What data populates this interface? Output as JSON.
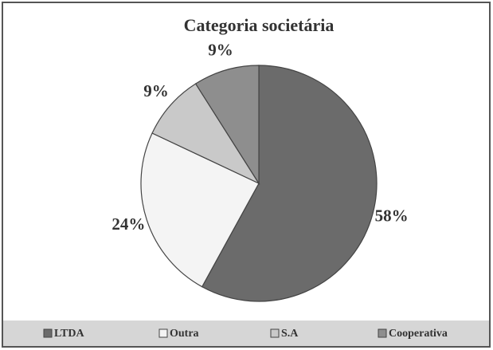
{
  "chart_data": {
    "type": "pie",
    "title": "Categoria societária",
    "categories": [
      "LTDA",
      "Outra",
      "S.A",
      "Cooperativa"
    ],
    "values": [
      58,
      24,
      9,
      9
    ],
    "value_labels": [
      "58%",
      "24%",
      "9%",
      "9%"
    ],
    "colors": [
      "#6b6b6b",
      "#f4f4f4",
      "#c9c9c9",
      "#8e8e8e"
    ],
    "legend": "bottom"
  }
}
